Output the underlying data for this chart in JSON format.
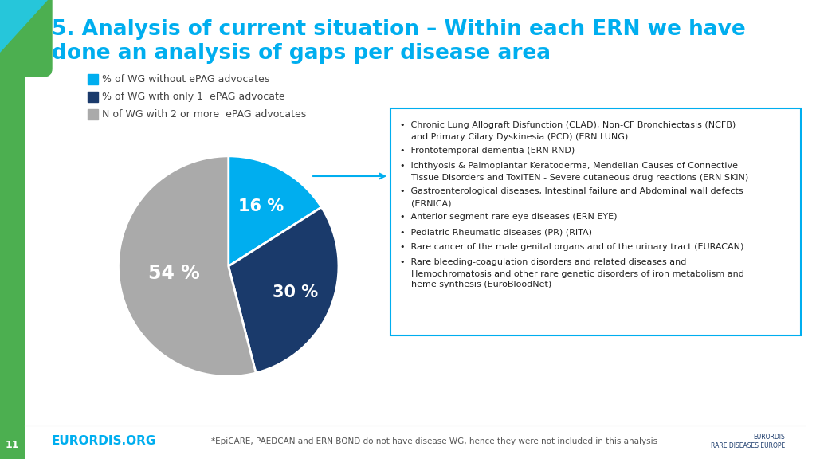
{
  "title_line1": "5. Analysis of current situation – Within each ERN we have",
  "title_line2": "done an analysis of gaps per disease area",
  "title_color": "#00AEEF",
  "title_fontsize": 19,
  "background_color": "#FFFFFF",
  "green_bar_color": "#4CAF50",
  "teal_color": "#26C6DA",
  "pie_values": [
    16,
    30,
    54
  ],
  "pie_colors": [
    "#00AEEF",
    "#1A3A6B",
    "#AAAAAA"
  ],
  "pie_labels": [
    "16 %",
    "30 %",
    "54 %"
  ],
  "legend_labels": [
    "% of WG without ePAG advocates",
    "% of WG with only 1  ePAG advocate",
    "N of WG with 2 or more  ePAG advocates"
  ],
  "legend_colors": [
    "#00AEEF",
    "#1A3A6B",
    "#AAAAAA"
  ],
  "bullet_points": [
    [
      "Chronic Lung Allograft Disfunction (CLAD), Non-CF Bronchiectasis (NCFB)",
      "and Primary Cilary Dyskinesia (PCD) (ERN LUNG)"
    ],
    [
      "Frontotemporal dementia (ERN RND)"
    ],
    [
      "Ichthyosis & Palmoplantar Keratoderma, Mendelian Causes of Connective",
      "Tissue Disorders and ToxiTEN - Severe cutaneous drug reactions (ERN SKIN)"
    ],
    [
      "Gastroenterological diseases, Intestinal failure and Abdominal wall defects",
      "(ERNICA)"
    ],
    [
      "Anterior segment rare eye diseases (ERN EYE)"
    ],
    [
      "Pediatric Rheumatic diseases (PR) (RITA)"
    ],
    [
      "Rare cancer of the male genital organs and of the urinary tract (EURACAN)"
    ],
    [
      "Rare bleeding-coagulation disorders and related diseases and",
      "Hemochromatosis and other rare genetic disorders of iron metabolism and",
      "heme synthesis (EuroBloodNet)"
    ]
  ],
  "footer_text": "*EpiCARE, PAEDCAN and ERN BOND do not have disease WG, hence they were not included in this analysis",
  "page_number": "11",
  "eurordis_text": "EURORDIS.ORG",
  "eurordis_color": "#00AEEF",
  "arrow_color": "#00AEEF",
  "box_edge_color": "#00AEEF"
}
